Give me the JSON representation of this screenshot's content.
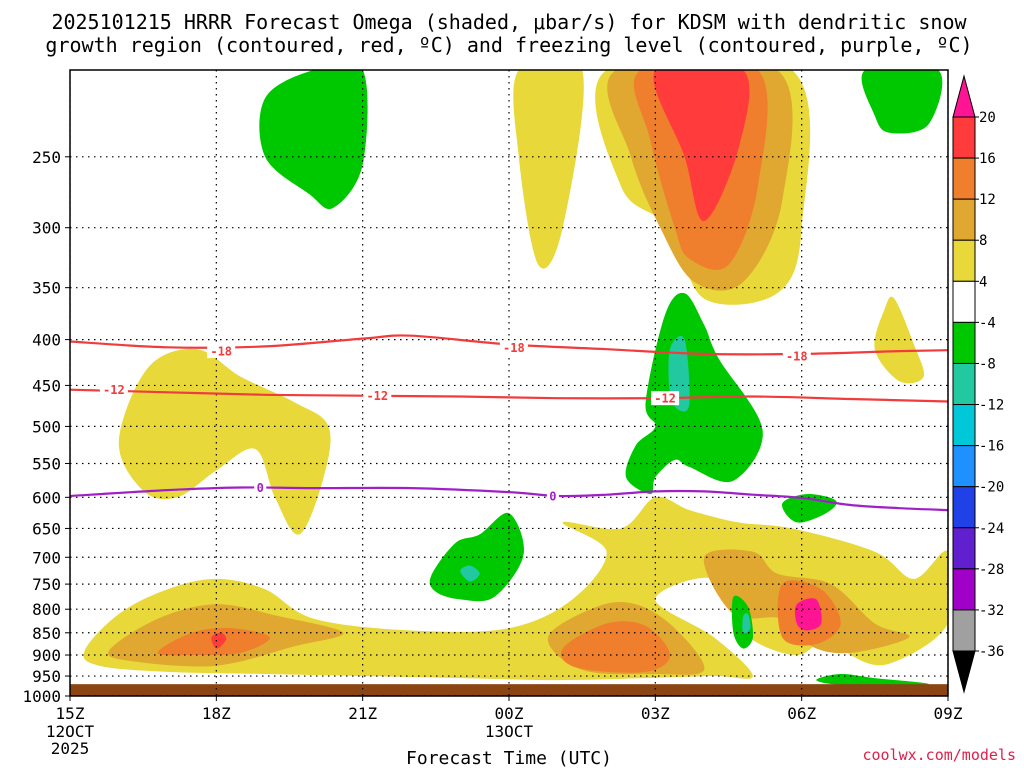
{
  "chart_data": {
    "type": "contour",
    "title_line1": "2025101215 HRRR Forecast Omega (shaded, μbar/s) for KDSM with dendritic snow",
    "title_line2": "growth region (contoured, red, ºC) and freezing level (contoured, purple, ºC)",
    "xlabel": "Forecast Time (UTC)",
    "credit": "coolwx.com/models",
    "x_ticks": [
      {
        "hour": 0,
        "label": "15Z",
        "sub": [
          "12OCT",
          "2025"
        ]
      },
      {
        "hour": 3,
        "label": "18Z",
        "sub": []
      },
      {
        "hour": 6,
        "label": "21Z",
        "sub": []
      },
      {
        "hour": 9,
        "label": "00Z",
        "sub": [
          "13OCT"
        ]
      },
      {
        "hour": 12,
        "label": "03Z",
        "sub": []
      },
      {
        "hour": 15,
        "label": "06Z",
        "sub": []
      },
      {
        "hour": 18,
        "label": "09Z",
        "sub": []
      }
    ],
    "xlim_hours": [
      0,
      18
    ],
    "y_ticks": [
      250,
      300,
      350,
      400,
      450,
      500,
      550,
      600,
      650,
      700,
      750,
      800,
      850,
      900,
      950,
      1000
    ],
    "ylim_hPa": [
      200,
      1000
    ],
    "surface_pressure_hPa": 970,
    "colorbar": {
      "labels": [
        "20",
        "16",
        "12",
        "8",
        "4",
        "-4",
        "-8",
        "-12",
        "-16",
        "-20",
        "-24",
        "-28",
        "-32",
        "-36"
      ],
      "colors": [
        "#ff1493",
        "#ff3b3b",
        "#ef7f2c",
        "#e0a830",
        "#e8d83a",
        "#ffffff",
        "#00c800",
        "#22c8a0",
        "#00c8d8",
        "#1e90ff",
        "#2040e8",
        "#6020d0",
        "#a000c8",
        "#a0a0a0",
        "#000000"
      ]
    },
    "omega_regions": [
      {
        "level": 4,
        "color": "#e8d83a",
        "points": [
          [
            9.2,
            200
          ],
          [
            10.5,
            200
          ],
          [
            10.1,
            300
          ],
          [
            9.6,
            330
          ],
          [
            9.2,
            250
          ]
        ]
      },
      {
        "level": 4,
        "color": "#e8d83a",
        "points": [
          [
            11.0,
            200
          ],
          [
            14.8,
            200
          ],
          [
            15.0,
            300
          ],
          [
            14.5,
            355
          ],
          [
            13.0,
            360
          ],
          [
            12.3,
            300
          ],
          [
            11.3,
            270
          ]
        ]
      },
      {
        "level": 4,
        "color": "#e8d83a",
        "points": [
          [
            16.9,
            360
          ],
          [
            17.3,
            405
          ],
          [
            17.5,
            440
          ],
          [
            17.0,
            445
          ],
          [
            16.5,
            410
          ],
          [
            16.7,
            370
          ]
        ]
      },
      {
        "level": 4,
        "color": "#e8d83a",
        "points": [
          [
            1.5,
            590
          ],
          [
            1.0,
            520
          ],
          [
            1.6,
            430
          ],
          [
            2.6,
            410
          ],
          [
            3.5,
            440
          ],
          [
            4.6,
            470
          ],
          [
            5.3,
            500
          ],
          [
            5.2,
            570
          ],
          [
            4.7,
            660
          ],
          [
            4.2,
            600
          ],
          [
            3.8,
            530
          ],
          [
            3.0,
            560
          ],
          [
            2.2,
            600
          ]
        ]
      },
      {
        "level": 4,
        "color": "#e8d83a",
        "points": [
          [
            0.3,
            890
          ],
          [
            1.0,
            810
          ],
          [
            2.0,
            760
          ],
          [
            3.0,
            740
          ],
          [
            4.0,
            760
          ],
          [
            5.0,
            820
          ],
          [
            7.0,
            845
          ],
          [
            9.0,
            840
          ],
          [
            10.3,
            780
          ],
          [
            11.0,
            690
          ],
          [
            10.1,
            640
          ],
          [
            11.3,
            650
          ],
          [
            12.0,
            600
          ],
          [
            12.7,
            620
          ],
          [
            13.7,
            640
          ],
          [
            14.8,
            650
          ],
          [
            16.5,
            690
          ],
          [
            17.3,
            740
          ],
          [
            18,
            690
          ],
          [
            18,
            830
          ],
          [
            16.8,
            920
          ],
          [
            16.0,
            900
          ],
          [
            15.6,
            850
          ],
          [
            14.9,
            900
          ],
          [
            13.8,
            850
          ],
          [
            13.2,
            740
          ],
          [
            12.0,
            780
          ],
          [
            13.2,
            860
          ],
          [
            14.0,
            950
          ],
          [
            13.2,
            950
          ],
          [
            11.8,
            955
          ],
          [
            10.0,
            960
          ],
          [
            8.0,
            955
          ],
          [
            6.0,
            950
          ],
          [
            4.0,
            945
          ],
          [
            2.0,
            940
          ],
          [
            0.6,
            925
          ]
        ]
      },
      {
        "level": 8,
        "color": "#e0a830",
        "points": [
          [
            11.2,
            200
          ],
          [
            14.5,
            200
          ],
          [
            14.6,
            280
          ],
          [
            13.8,
            345
          ],
          [
            12.8,
            345
          ],
          [
            12.1,
            300
          ],
          [
            11.5,
            250
          ]
        ]
      },
      {
        "level": 8,
        "color": "#e0a830",
        "points": [
          [
            0.8,
            890
          ],
          [
            1.8,
            820
          ],
          [
            3.0,
            790
          ],
          [
            4.3,
            815
          ],
          [
            5.6,
            850
          ],
          [
            4.6,
            880
          ],
          [
            3.0,
            925
          ],
          [
            1.3,
            915
          ]
        ]
      },
      {
        "level": 8,
        "color": "#e0a830",
        "points": [
          [
            9.8,
            860
          ],
          [
            10.8,
            795
          ],
          [
            11.6,
            790
          ],
          [
            12.4,
            840
          ],
          [
            13.0,
            935
          ],
          [
            12.0,
            945
          ],
          [
            10.5,
            935
          ]
        ]
      },
      {
        "level": 8,
        "color": "#e0a830",
        "points": [
          [
            14.5,
            730
          ],
          [
            15.6,
            750
          ],
          [
            16.5,
            830
          ],
          [
            17.2,
            860
          ],
          [
            16.0,
            895
          ],
          [
            15.2,
            880
          ],
          [
            14.6,
            820
          ],
          [
            13.6,
            810
          ],
          [
            13.0,
            700
          ],
          [
            14.0,
            690
          ]
        ]
      },
      {
        "level": 12,
        "color": "#ef7f2c",
        "points": [
          [
            11.7,
            200
          ],
          [
            14.1,
            200
          ],
          [
            14.1,
            270
          ],
          [
            13.5,
            330
          ],
          [
            12.7,
            325
          ],
          [
            12.4,
            300
          ],
          [
            11.9,
            240
          ]
        ]
      },
      {
        "level": 12,
        "color": "#ef7f2c",
        "points": [
          [
            1.8,
            895
          ],
          [
            2.5,
            850
          ],
          [
            3.3,
            840
          ],
          [
            4.1,
            860
          ],
          [
            3.5,
            895
          ],
          [
            2.6,
            900
          ]
        ]
      },
      {
        "level": 12,
        "color": "#ef7f2c",
        "points": [
          [
            10.1,
            885
          ],
          [
            11.0,
            830
          ],
          [
            11.8,
            835
          ],
          [
            12.3,
            900
          ],
          [
            11.8,
            940
          ],
          [
            10.4,
            930
          ]
        ]
      },
      {
        "level": 12,
        "color": "#ef7f2c",
        "points": [
          [
            14.6,
            750
          ],
          [
            15.4,
            760
          ],
          [
            15.8,
            830
          ],
          [
            15.3,
            875
          ],
          [
            14.6,
            860
          ]
        ]
      },
      {
        "level": 16,
        "color": "#ff3b3b",
        "points": [
          [
            12.0,
            200
          ],
          [
            13.8,
            200
          ],
          [
            13.7,
            245
          ],
          [
            13.0,
            295
          ],
          [
            12.6,
            250
          ]
        ]
      },
      {
        "level": 16,
        "color": "#ff3b3b",
        "points": [
          [
            2.9,
            860
          ],
          [
            3.1,
            850
          ],
          [
            3.2,
            865
          ],
          [
            3.0,
            885
          ]
        ]
      },
      {
        "level": 20,
        "color": "#ff1493",
        "points": [
          [
            14.9,
            790
          ],
          [
            15.3,
            780
          ],
          [
            15.4,
            830
          ],
          [
            15.1,
            845
          ],
          [
            14.9,
            830
          ]
        ]
      },
      {
        "level": -4,
        "color": "#00c800",
        "points": [
          [
            4.0,
            215
          ],
          [
            5.0,
            200
          ],
          [
            6.0,
            200
          ],
          [
            6.0,
            255
          ],
          [
            5.4,
            285
          ],
          [
            4.9,
            275
          ],
          [
            4.0,
            250
          ]
        ]
      },
      {
        "level": -4,
        "color": "#00c800",
        "points": [
          [
            16.3,
            200
          ],
          [
            17.8,
            200
          ],
          [
            17.6,
            230
          ],
          [
            16.8,
            235
          ],
          [
            16.5,
            225
          ]
        ]
      },
      {
        "level": -4,
        "color": "#00c800",
        "points": [
          [
            11.8,
            470
          ],
          [
            12.2,
            375
          ],
          [
            12.6,
            355
          ],
          [
            13.0,
            385
          ],
          [
            13.3,
            420
          ],
          [
            14.2,
            505
          ],
          [
            13.6,
            575
          ],
          [
            12.7,
            555
          ],
          [
            12.4,
            545
          ],
          [
            12.0,
            570
          ],
          [
            11.9,
            595
          ],
          [
            11.4,
            570
          ],
          [
            11.6,
            525
          ],
          [
            12.0,
            500
          ]
        ]
      },
      {
        "level": -4,
        "color": "#00c800",
        "points": [
          [
            7.4,
            735
          ],
          [
            7.9,
            675
          ],
          [
            8.4,
            660
          ],
          [
            9.0,
            625
          ],
          [
            9.3,
            695
          ],
          [
            8.7,
            775
          ],
          [
            8.0,
            780
          ],
          [
            7.5,
            765
          ]
        ]
      },
      {
        "level": -4,
        "color": "#00c800",
        "points": [
          [
            14.6,
            610
          ],
          [
            15.1,
            595
          ],
          [
            15.7,
            605
          ],
          [
            15.5,
            625
          ],
          [
            14.9,
            640
          ]
        ]
      },
      {
        "level": -4,
        "color": "#00c800",
        "points": [
          [
            13.6,
            775
          ],
          [
            13.9,
            795
          ],
          [
            14.0,
            860
          ],
          [
            13.8,
            885
          ],
          [
            13.6,
            850
          ]
        ]
      },
      {
        "level": -4,
        "color": "#00c800",
        "points": [
          [
            15.3,
            960
          ],
          [
            15.8,
            945
          ],
          [
            16.5,
            955
          ],
          [
            17.6,
            970
          ],
          [
            15.9,
            972
          ]
        ]
      },
      {
        "level": -8,
        "color": "#22c8a0",
        "points": [
          [
            12.3,
            410
          ],
          [
            12.6,
            400
          ],
          [
            12.7,
            470
          ],
          [
            12.5,
            480
          ],
          [
            12.3,
            460
          ]
        ]
      },
      {
        "level": -8,
        "color": "#22c8a0",
        "points": [
          [
            8.0,
            725
          ],
          [
            8.2,
            715
          ],
          [
            8.4,
            730
          ],
          [
            8.2,
            745
          ]
        ]
      },
      {
        "level": -8,
        "color": "#22c8a0",
        "points": [
          [
            13.8,
            815
          ],
          [
            13.9,
            810
          ],
          [
            13.95,
            840
          ],
          [
            13.8,
            850
          ]
        ]
      }
    ],
    "dendritic_contours": [
      {
        "label": "-18",
        "label_positions": [
          [
            3.1,
            412
          ],
          [
            9.1,
            408
          ],
          [
            14.9,
            417
          ]
        ],
        "points": [
          [
            0,
            402
          ],
          [
            2,
            408
          ],
          [
            4,
            407
          ],
          [
            6,
            399
          ],
          [
            7,
            396
          ],
          [
            9,
            405
          ],
          [
            11,
            410
          ],
          [
            13,
            415
          ],
          [
            15,
            415
          ],
          [
            17,
            412
          ],
          [
            18,
            411
          ]
        ]
      },
      {
        "label": "-12",
        "label_positions": [
          [
            0.9,
            455
          ],
          [
            6.3,
            462
          ],
          [
            12.2,
            465
          ]
        ],
        "points": [
          [
            0,
            455
          ],
          [
            2,
            458
          ],
          [
            4,
            461
          ],
          [
            6,
            462
          ],
          [
            8,
            463
          ],
          [
            10,
            465
          ],
          [
            12,
            465
          ],
          [
            14,
            463
          ],
          [
            16,
            466
          ],
          [
            18,
            469
          ]
        ]
      }
    ],
    "freezing_contour": {
      "label": "0",
      "label_positions": [
        [
          3.9,
          585
        ],
        [
          9.9,
          598
        ]
      ],
      "points": [
        [
          0,
          598
        ],
        [
          2,
          589
        ],
        [
          3.5,
          585
        ],
        [
          5,
          586
        ],
        [
          7,
          586
        ],
        [
          9,
          592
        ],
        [
          10,
          598
        ],
        [
          11,
          596
        ],
        [
          12,
          591
        ],
        [
          13,
          591
        ],
        [
          14,
          596
        ],
        [
          15,
          601
        ],
        [
          16,
          612
        ],
        [
          17,
          617
        ],
        [
          18,
          620
        ]
      ]
    }
  }
}
